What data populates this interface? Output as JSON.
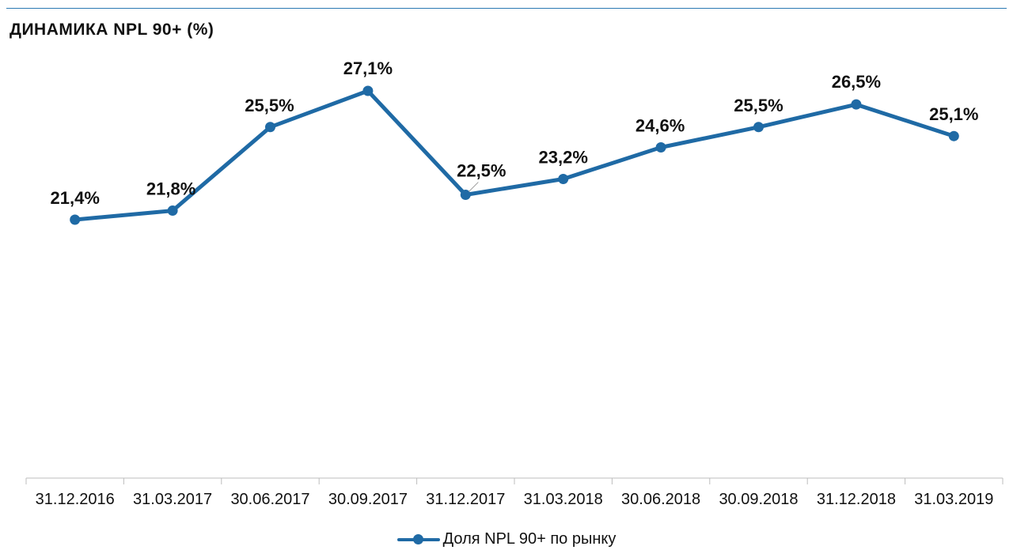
{
  "chart_data": {
    "type": "line",
    "title": "ДИНАМИКА NPL 90+ (%)",
    "xlabel": "",
    "ylabel": "",
    "categories": [
      "31.12.2016",
      "31.03.2017",
      "30.06.2017",
      "30.09.2017",
      "31.12.2017",
      "31.03.2018",
      "30.06.2018",
      "30.09.2018",
      "31.12.2018",
      "31.03.2019"
    ],
    "series": [
      {
        "name": "Доля NPL 90+ по рынку",
        "values": [
          21.4,
          21.8,
          25.5,
          27.1,
          22.5,
          23.2,
          24.6,
          25.5,
          26.5,
          25.1
        ],
        "labels": [
          "21,4%",
          "21,8%",
          "25,5%",
          "27,1%",
          "22,5%",
          "23,2%",
          "24,6%",
          "25,5%",
          "26,5%",
          "25,1%"
        ],
        "color": "#1f6aa5"
      }
    ],
    "grid": false,
    "legend": "bottom-center"
  }
}
